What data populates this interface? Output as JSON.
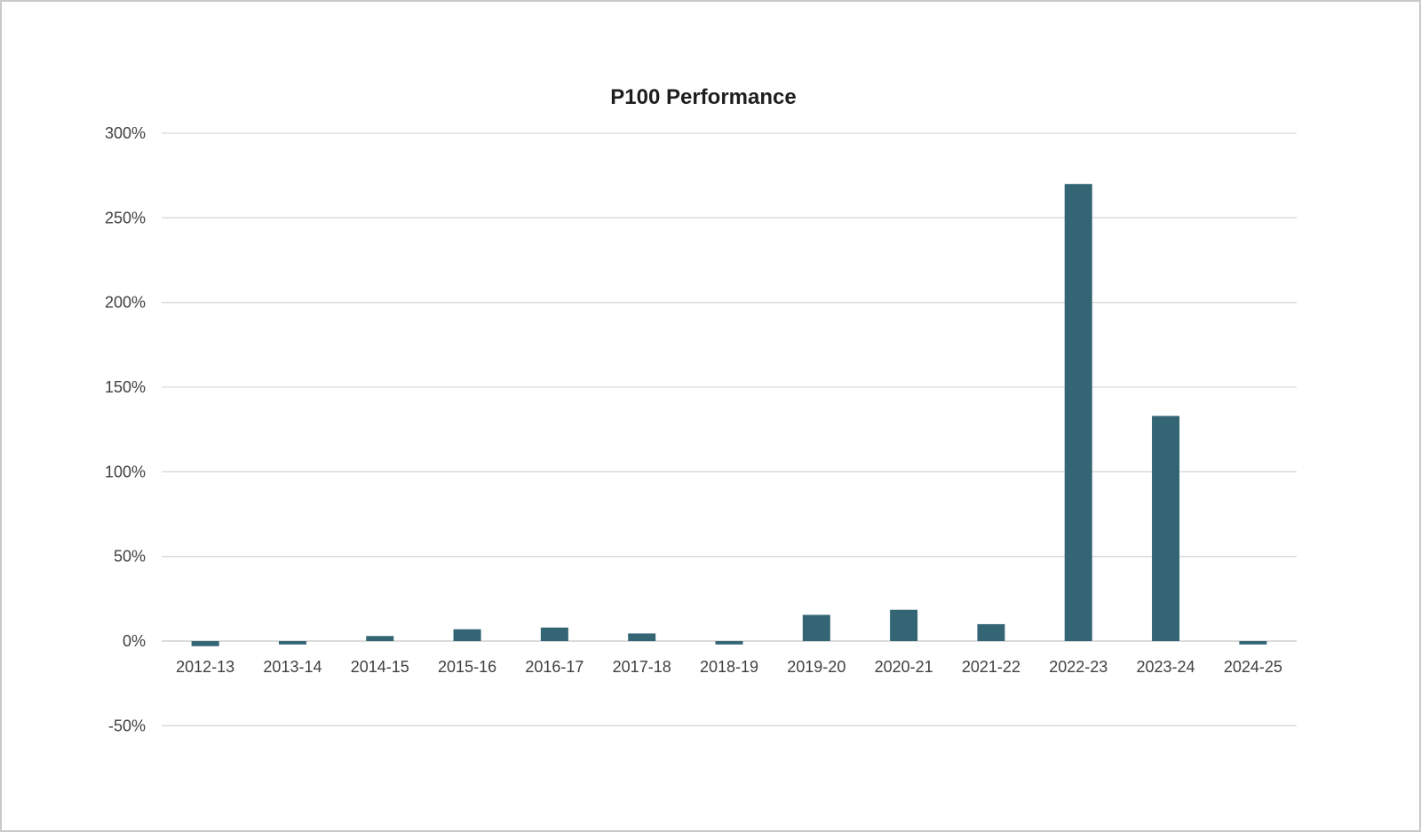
{
  "chart_data": {
    "type": "bar",
    "title": "P100 Performance",
    "xlabel": "",
    "ylabel": "",
    "categories": [
      "2012-13",
      "2013-14",
      "2014-15",
      "2015-16",
      "2016-17",
      "2017-18",
      "2018-19",
      "2019-20",
      "2020-21",
      "2021-22",
      "2022-23",
      "2023-24",
      "2024-25"
    ],
    "values": [
      -3,
      -2,
      3,
      7,
      8,
      4.5,
      -2,
      15.5,
      18.5,
      10,
      270,
      133,
      -2
    ],
    "unit": "%",
    "ylim": [
      -50,
      300
    ],
    "yticks": [
      -50,
      0,
      50,
      100,
      150,
      200,
      250,
      300
    ],
    "ytick_labels": [
      "-50%",
      "0%",
      "50%",
      "100%",
      "150%",
      "200%",
      "250%",
      "300%"
    ],
    "grid": true,
    "legend": "none",
    "bar_color": "#336574"
  }
}
